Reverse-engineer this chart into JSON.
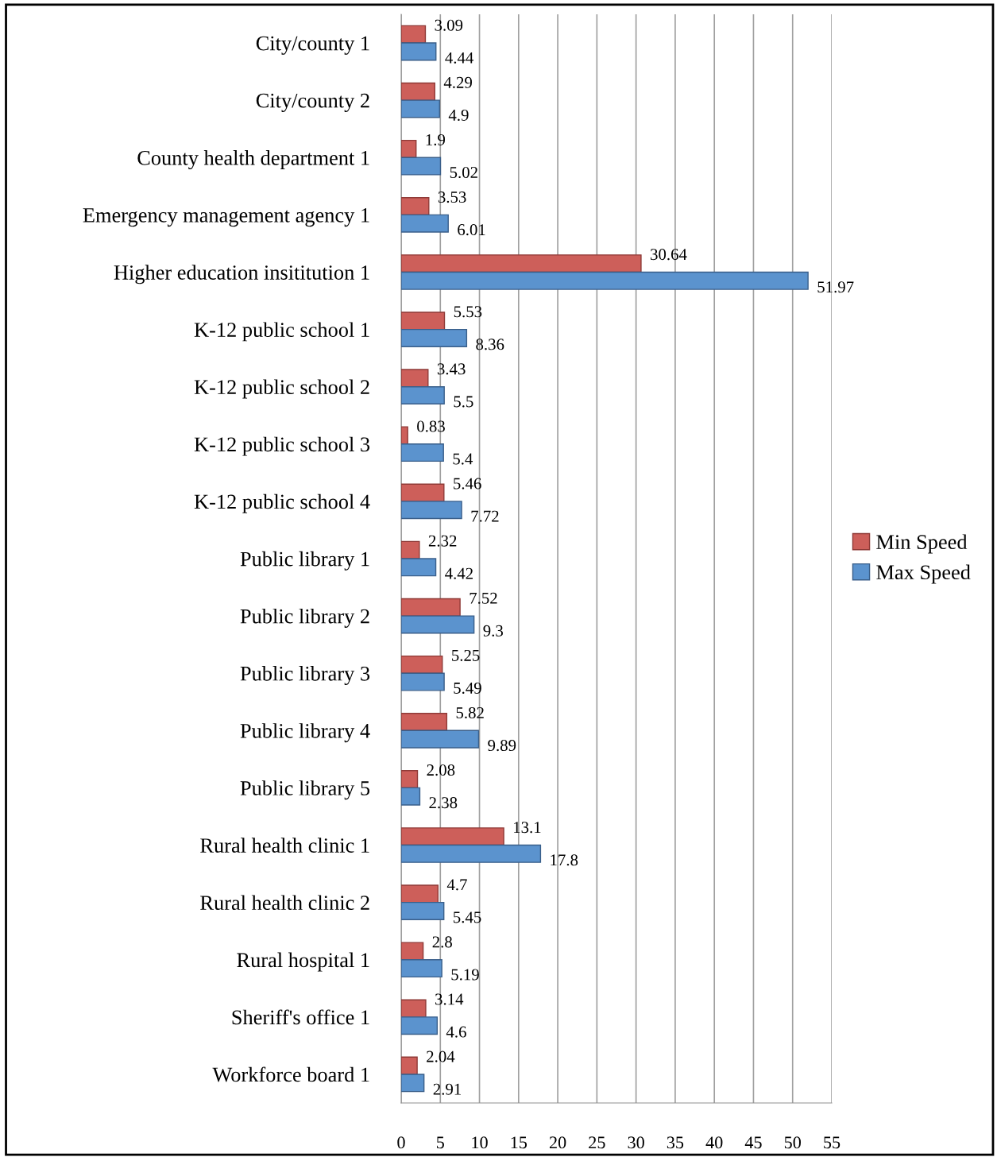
{
  "chart_data": {
    "type": "bar",
    "orientation": "horizontal",
    "categories": [
      "City/county 1",
      "City/county 2",
      "County health department 1",
      "Emergency management agency 1",
      "Higher education insititution 1",
      "K-12 public school 1",
      "K-12 public school 2",
      "K-12 public school 3",
      "K-12 public school 4",
      "Public library 1",
      "Public library 2",
      "Public library 3",
      "Public library 4",
      "Public library 5",
      "Rural health clinic 1",
      "Rural health clinic 2",
      "Rural hospital 1",
      "Sheriff's office 1",
      "Workforce board 1"
    ],
    "series": [
      {
        "name": "Min Speed",
        "color": "#cd5f5a",
        "values": [
          3.09,
          4.29,
          1.9,
          3.53,
          30.64,
          5.53,
          3.43,
          0.83,
          5.46,
          2.32,
          7.52,
          5.25,
          5.82,
          2.08,
          13.1,
          4.7,
          2.8,
          3.14,
          2.04
        ]
      },
      {
        "name": "Max Speed",
        "color": "#5b93ce",
        "values": [
          4.44,
          4.9,
          5.02,
          6.01,
          51.97,
          8.36,
          5.5,
          5.4,
          7.72,
          4.42,
          9.3,
          5.49,
          9.89,
          2.38,
          17.8,
          5.45,
          5.19,
          4.6,
          2.91
        ]
      }
    ],
    "xlim": [
      0,
      55
    ],
    "xticks": [
      0,
      5,
      10,
      15,
      20,
      25,
      30,
      35,
      40,
      45,
      50,
      55
    ],
    "grid": "x",
    "legend": "right",
    "data_labels": true
  }
}
